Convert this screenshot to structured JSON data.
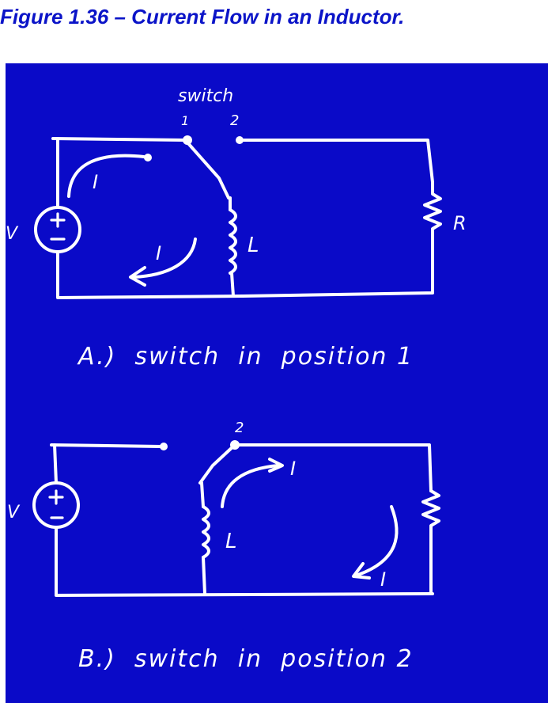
{
  "figure": {
    "title": "Figure 1.36 – Current Flow in an Inductor."
  },
  "colors": {
    "title": "#0b14c8",
    "board": "#0a0ac8",
    "ink": "#ffffff"
  },
  "circuit_a": {
    "switch_label": "switch",
    "pos1_label": "1",
    "pos2_label": "2",
    "source_label": "V",
    "inductor_label": "L",
    "resistor_label": "R",
    "current_top_label": "I",
    "current_bottom_label": "I",
    "caption": "A.)  switch  in  position 1"
  },
  "circuit_b": {
    "pos2_label": "2",
    "source_label": "V",
    "inductor_label": "L",
    "current_top_label": "I",
    "current_bottom_label": "I",
    "caption": "B.)  switch  in  position 2"
  }
}
